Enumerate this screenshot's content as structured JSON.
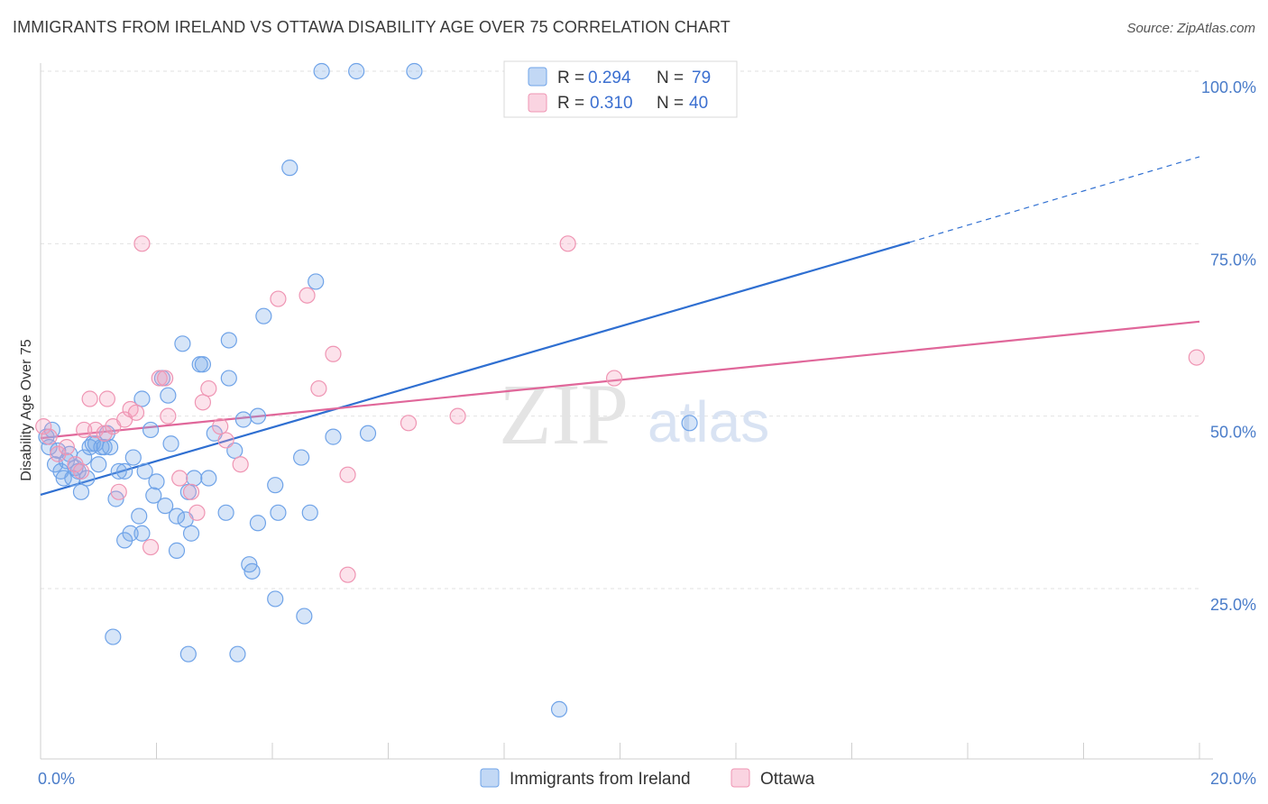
{
  "title": "IMMIGRANTS FROM IRELAND VS OTTAWA DISABILITY AGE OVER 75 CORRELATION CHART",
  "source": "Source: ZipAtlas.com",
  "watermark": {
    "zip": "ZIP",
    "atlas": "atlas"
  },
  "colors": {
    "blue": "#6fa3e8",
    "blue_fill": "rgba(120,168,232,0.30)",
    "blue_line": "#2f6fd1",
    "pink": "#ef95b3",
    "pink_fill": "rgba(244,160,188,0.30)",
    "pink_line": "#e0679a",
    "axis_text": "#4a7cc9"
  },
  "legend": {
    "rows": [
      {
        "r_label": "R =",
        "r_value": "0.294",
        "n_label": "N =",
        "n_value": "79"
      },
      {
        "r_label": "R =",
        "r_value": "0.310",
        "n_label": "N =",
        "n_value": "40"
      }
    ]
  },
  "bottom_legend": [
    "Immigrants from Ireland",
    "Ottawa"
  ],
  "chart_data": {
    "type": "scatter",
    "title": "IMMIGRANTS FROM IRELAND VS OTTAWA DISABILITY AGE OVER 75 CORRELATION CHART",
    "xlabel": "",
    "ylabel": "Disability Age Over 75",
    "xlim": [
      0,
      20
    ],
    "ylim": [
      0,
      102
    ],
    "x_tick_labels": [
      "0.0%",
      "20.0%"
    ],
    "y_tick_labels": [
      "25.0%",
      "50.0%",
      "75.0%",
      "100.0%"
    ],
    "y_ticks": [
      25,
      50,
      75,
      100
    ],
    "grid": true,
    "legend_position": "top-center",
    "series": [
      {
        "name": "Immigrants from Ireland",
        "r": 0.294,
        "n": 79,
        "trend": {
          "x0": 0.0,
          "y0": 38.6,
          "x1": 15.0,
          "y1": 75.2,
          "dashed_to_x": 20.0,
          "dashed_to_y": 87.6
        },
        "points": [
          [
            0.1,
            47.0
          ],
          [
            0.15,
            45.5
          ],
          [
            0.25,
            43.0
          ],
          [
            0.3,
            45.0
          ],
          [
            0.35,
            42.0
          ],
          [
            0.4,
            41.0
          ],
          [
            0.45,
            43.5
          ],
          [
            0.5,
            44.5
          ],
          [
            0.55,
            41.0
          ],
          [
            0.6,
            42.5
          ],
          [
            0.65,
            42.0
          ],
          [
            0.7,
            39.0
          ],
          [
            0.75,
            44.0
          ],
          [
            0.8,
            41.0
          ],
          [
            0.85,
            45.5
          ],
          [
            0.9,
            46.0
          ],
          [
            0.95,
            46.0
          ],
          [
            1.0,
            43.0
          ],
          [
            1.05,
            45.5
          ],
          [
            1.1,
            45.5
          ],
          [
            1.15,
            47.5
          ],
          [
            1.3,
            38.0
          ],
          [
            1.35,
            42.0
          ],
          [
            1.45,
            42.0
          ],
          [
            1.45,
            32.0
          ],
          [
            1.55,
            33.0
          ],
          [
            1.6,
            44.0
          ],
          [
            1.7,
            35.5
          ],
          [
            1.75,
            33.0
          ],
          [
            1.75,
            52.5
          ],
          [
            1.8,
            42.0
          ],
          [
            1.9,
            48.0
          ],
          [
            1.95,
            38.5
          ],
          [
            2.0,
            40.5
          ],
          [
            2.1,
            55.5
          ],
          [
            2.15,
            37.0
          ],
          [
            2.2,
            53.0
          ],
          [
            2.25,
            46.0
          ],
          [
            2.35,
            35.5
          ],
          [
            2.35,
            30.5
          ],
          [
            2.45,
            60.5
          ],
          [
            2.5,
            35.0
          ],
          [
            2.6,
            33.0
          ],
          [
            2.55,
            39.0
          ],
          [
            2.65,
            41.0
          ],
          [
            2.75,
            57.5
          ],
          [
            2.8,
            57.5
          ],
          [
            2.9,
            41.0
          ],
          [
            3.0,
            47.5
          ],
          [
            3.2,
            36.0
          ],
          [
            3.25,
            55.5
          ],
          [
            3.25,
            61.0
          ],
          [
            3.35,
            45.0
          ],
          [
            3.5,
            49.5
          ],
          [
            3.6,
            28.5
          ],
          [
            3.65,
            27.5
          ],
          [
            3.75,
            34.5
          ],
          [
            3.75,
            50.0
          ],
          [
            3.85,
            64.5
          ],
          [
            4.05,
            23.5
          ],
          [
            4.05,
            40.0
          ],
          [
            4.1,
            36.0
          ],
          [
            4.3,
            86.0
          ],
          [
            4.5,
            44.0
          ],
          [
            4.55,
            21.0
          ],
          [
            4.75,
            69.5
          ],
          [
            4.85,
            100.0
          ],
          [
            5.05,
            47.0
          ],
          [
            5.45,
            100.0
          ],
          [
            5.65,
            47.5
          ],
          [
            6.45,
            100.0
          ],
          [
            8.95,
            7.5
          ],
          [
            11.2,
            49.0
          ],
          [
            0.2,
            48.0
          ],
          [
            1.25,
            18.0
          ],
          [
            2.55,
            15.5
          ],
          [
            3.4,
            15.5
          ],
          [
            4.65,
            36.0
          ],
          [
            1.2,
            45.5
          ]
        ]
      },
      {
        "name": "Ottawa",
        "r": 0.31,
        "n": 40,
        "trend": {
          "x0": 0.0,
          "y0": 46.8,
          "x1": 20.0,
          "y1": 63.7
        },
        "points": [
          [
            0.05,
            48.5
          ],
          [
            0.15,
            47.0
          ],
          [
            0.3,
            44.5
          ],
          [
            0.45,
            45.5
          ],
          [
            0.6,
            43.0
          ],
          [
            0.7,
            42.0
          ],
          [
            0.75,
            48.0
          ],
          [
            0.85,
            52.5
          ],
          [
            0.95,
            48.0
          ],
          [
            1.1,
            47.5
          ],
          [
            1.15,
            52.5
          ],
          [
            1.25,
            48.5
          ],
          [
            1.35,
            39.0
          ],
          [
            1.45,
            49.5
          ],
          [
            1.55,
            51.0
          ],
          [
            1.65,
            50.5
          ],
          [
            1.75,
            75.0
          ],
          [
            1.9,
            31.0
          ],
          [
            2.05,
            55.5
          ],
          [
            2.15,
            55.5
          ],
          [
            2.2,
            50.0
          ],
          [
            2.4,
            41.0
          ],
          [
            2.6,
            39.0
          ],
          [
            2.7,
            36.0
          ],
          [
            2.8,
            52.0
          ],
          [
            2.9,
            54.0
          ],
          [
            3.1,
            48.5
          ],
          [
            3.2,
            46.5
          ],
          [
            3.45,
            43.0
          ],
          [
            4.1,
            67.0
          ],
          [
            4.6,
            67.5
          ],
          [
            4.8,
            54.0
          ],
          [
            5.05,
            59.0
          ],
          [
            5.3,
            41.5
          ],
          [
            5.3,
            27.0
          ],
          [
            6.35,
            49.0
          ],
          [
            7.2,
            50.0
          ],
          [
            9.1,
            75.0
          ],
          [
            9.9,
            55.5
          ],
          [
            19.95,
            58.5
          ]
        ]
      }
    ]
  }
}
